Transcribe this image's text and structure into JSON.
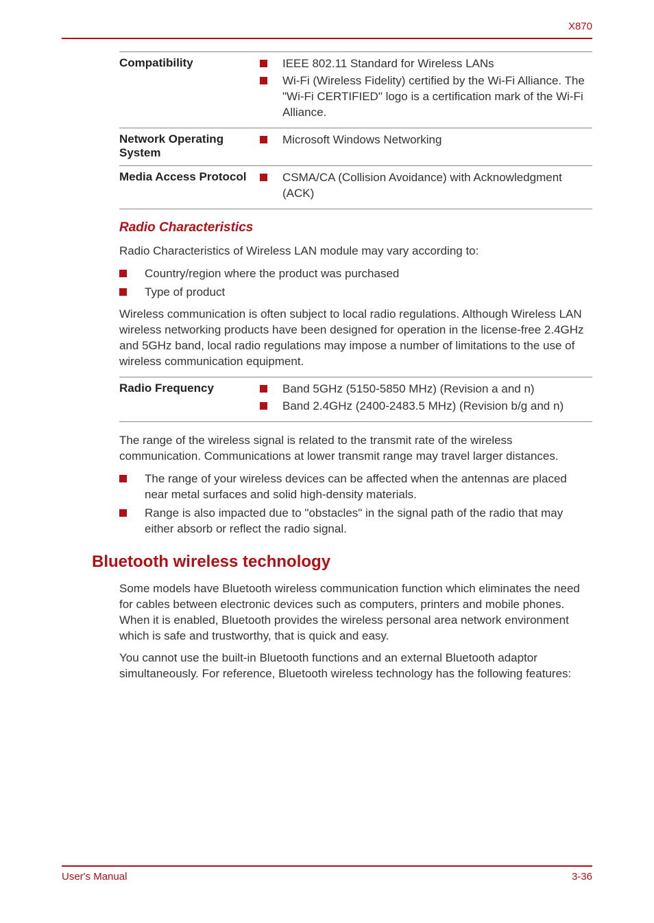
{
  "header": {
    "model": "X870"
  },
  "spec_table1": {
    "rows": [
      {
        "label": "Compatibility",
        "bullets": [
          "IEEE 802.11 Standard for Wireless LANs",
          "Wi-Fi (Wireless Fidelity) certified by the Wi-Fi Alliance. The \"Wi-Fi CERTIFIED\" logo is a certification mark of the Wi-Fi Alliance."
        ]
      },
      {
        "label": "Network Operating System",
        "bullets": [
          "Microsoft Windows Networking"
        ]
      },
      {
        "label": "Media Access Proto­col",
        "bullets": [
          "CSMA/CA (Collision Avoidance) with Acknowledgment (ACK)"
        ]
      }
    ]
  },
  "radio_heading": "Radio Characteristics",
  "radio_intro": "Radio Characteristics of Wireless LAN module may vary according to:",
  "radio_list": [
    "Country/region where the product was purchased",
    "Type of product"
  ],
  "radio_para": "Wireless communication is often subject to local radio regulations. Although Wireless LAN wireless networking products have been designed for operation in the license-free 2.4GHz and 5GHz band, local radio regulations may impose a number of limitations to the use of wireless communication equipment.",
  "spec_table2": {
    "rows": [
      {
        "label": "Radio Frequency",
        "bullets": [
          "Band 5GHz (5150-5850 MHz) (Revision a and n)",
          "Band 2.4GHz (2400-2483.5 MHz) (Revision b/g and n)"
        ]
      }
    ]
  },
  "range_para": "The range of the wireless signal is related to the transmit rate of the wireless communication. Communications at lower transmit range may travel larger distances.",
  "range_list": [
    "The range of your wireless devices can be affected when the antennas are placed near metal surfaces and solid high-density materials.",
    "Range is also impacted due to \"obstacles\" in the signal path of the radio that may either absorb or reflect the radio signal."
  ],
  "bt_heading": "Bluetooth wireless technology",
  "bt_para1": "Some models have Bluetooth wireless communication function which eliminates the need for cables between electronic devices such as computers, printers and mobile phones. When it is enabled, Bluetooth provides the wireless personal area network environment which is safe and trustworthy, that is quick and easy.",
  "bt_para2": "You cannot use the built-in Bluetooth functions and an external Bluetooth adaptor simultaneously. For reference, Bluetooth wireless technology has the following features:",
  "footer": {
    "left": "User's Manual",
    "right": "3-36"
  },
  "colors": {
    "accent": "#b01016",
    "text": "#333333",
    "rule": "#888888"
  }
}
